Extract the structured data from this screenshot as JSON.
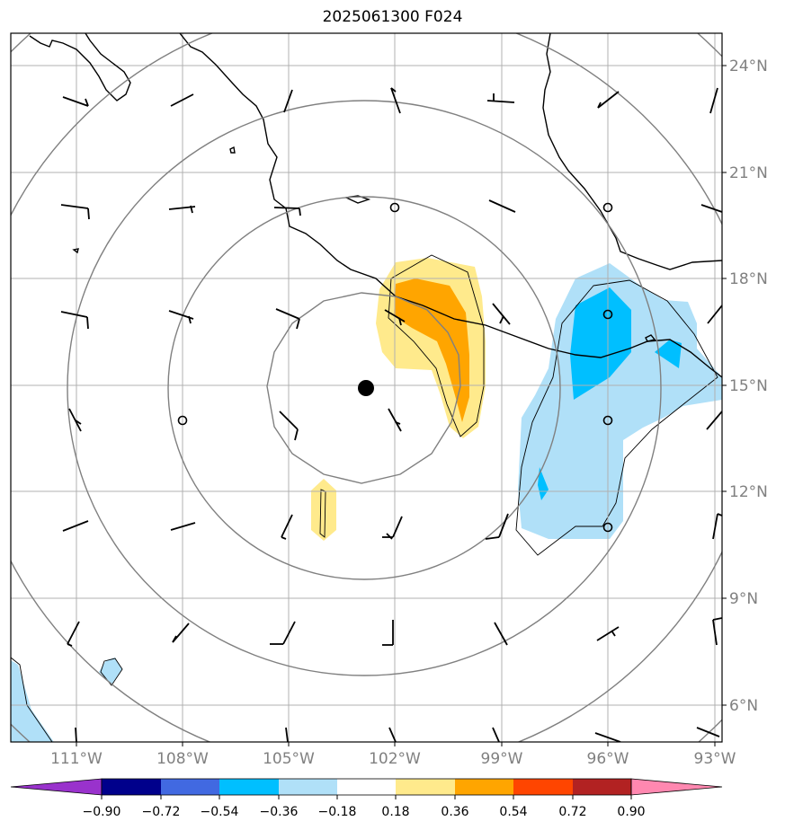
{
  "title": "2025061300 F024",
  "map": {
    "lon_ticks": [
      "111°W",
      "108°W",
      "105°W",
      "102°W",
      "99°W",
      "96°W",
      "93°W"
    ],
    "lat_ticks": [
      "24°N",
      "21°N",
      "18°N",
      "15°N",
      "12°N",
      "9°N",
      "6°N"
    ],
    "lon_range": [
      -113,
      -93
    ],
    "lat_range": [
      5,
      25
    ],
    "center_marker": {
      "lon": -102.8,
      "lat": 14.9,
      "label_icon": "storm-center-dot"
    },
    "range_rings": 5
  },
  "colorbar": {
    "tick_labels": [
      "−0.90",
      "−0.72",
      "−0.54",
      "−0.36",
      "−0.18",
      "0.18",
      "0.36",
      "0.54",
      "0.72",
      "0.90"
    ],
    "colors": [
      "#9932cc",
      "#00008b",
      "#4169e1",
      "#00bfff",
      "#b0e0f8",
      "#ffffff",
      "#ffea8c",
      "#ffa500",
      "#ff4500",
      "#b22222",
      "#ff88b0"
    ]
  },
  "colors": {
    "frame": "#000000",
    "grid": "#b0b0b0",
    "rings": "#808080",
    "coast": "#000000"
  }
}
